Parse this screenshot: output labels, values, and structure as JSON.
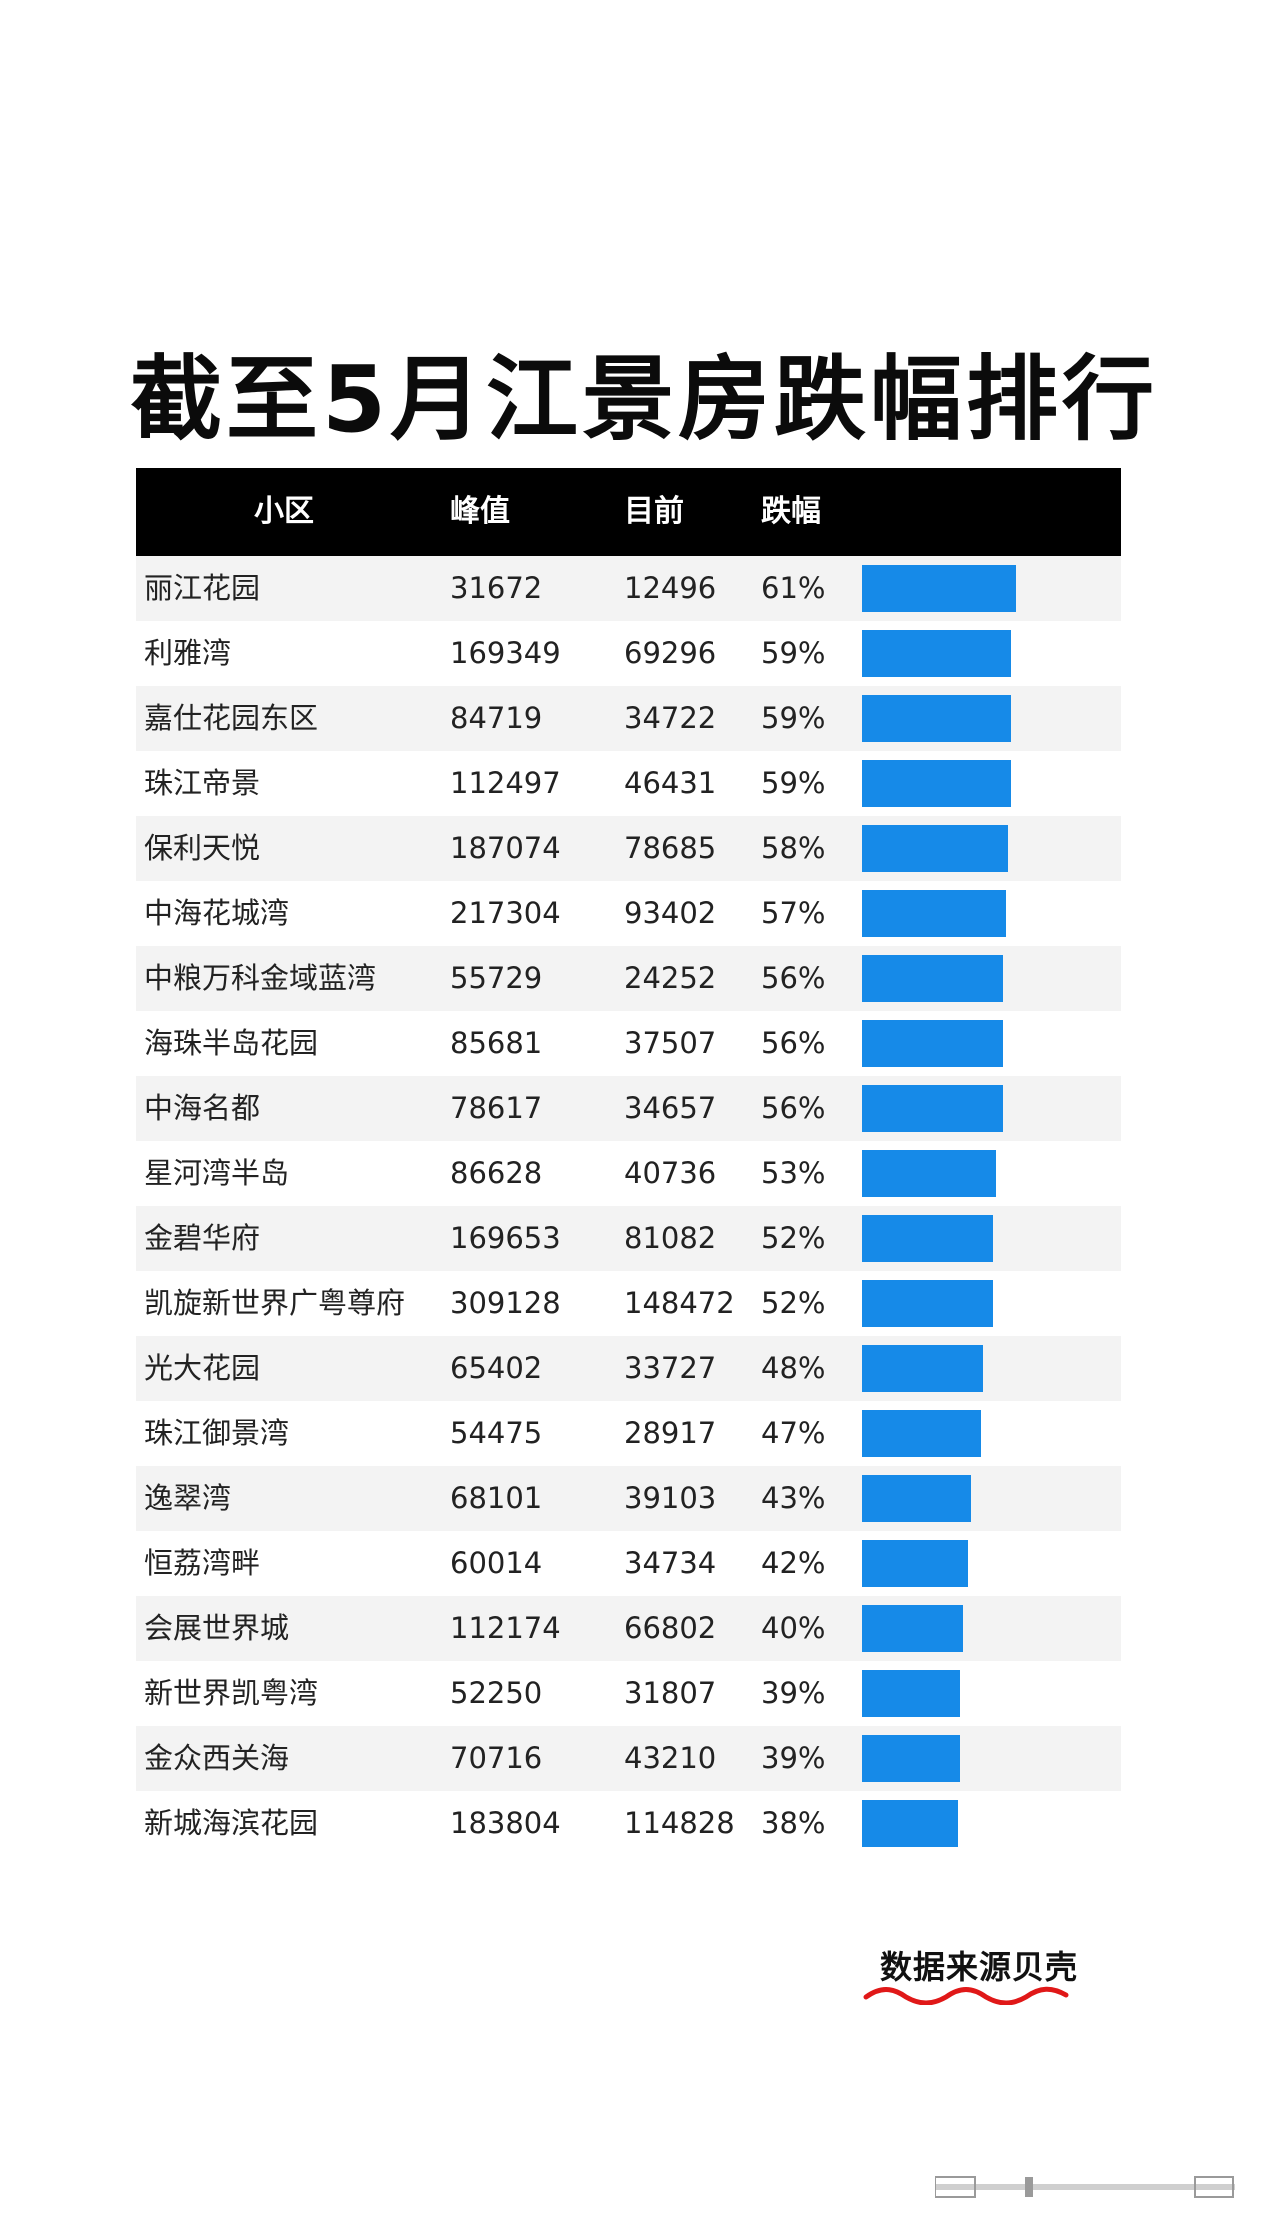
{
  "title": "截至5月江景房跌幅排行",
  "chart_data": {
    "type": "bar",
    "orientation": "horizontal",
    "title": "截至5月江景房跌幅排行",
    "columns": [
      "小区",
      "峰值",
      "目前",
      "跌幅"
    ],
    "rows": [
      {
        "name": "丽江花园",
        "peak": "31672",
        "current": "12496",
        "drop": "61%",
        "value": 61
      },
      {
        "name": "利雅湾",
        "peak": "169349",
        "current": "69296",
        "drop": "59%",
        "value": 59
      },
      {
        "name": "嘉仕花园东区",
        "peak": "84719",
        "current": "34722",
        "drop": "59%",
        "value": 59
      },
      {
        "name": "珠江帝景",
        "peak": "112497",
        "current": "46431",
        "drop": "59%",
        "value": 59
      },
      {
        "name": "保利天悦",
        "peak": "187074",
        "current": "78685",
        "drop": "58%",
        "value": 58
      },
      {
        "name": "中海花城湾",
        "peak": "217304",
        "current": "93402",
        "drop": "57%",
        "value": 57
      },
      {
        "name": "中粮万科金域蓝湾",
        "peak": "55729",
        "current": "24252",
        "drop": "56%",
        "value": 56
      },
      {
        "name": "海珠半岛花园",
        "peak": "85681",
        "current": "37507",
        "drop": "56%",
        "value": 56
      },
      {
        "name": "中海名都",
        "peak": "78617",
        "current": "34657",
        "drop": "56%",
        "value": 56
      },
      {
        "name": "星河湾半岛",
        "peak": "86628",
        "current": "40736",
        "drop": "53%",
        "value": 53
      },
      {
        "name": "金碧华府",
        "peak": "169653",
        "current": "81082",
        "drop": "52%",
        "value": 52
      },
      {
        "name": "凯旋新世界广粤尊府",
        "peak": "309128",
        "current": "148472",
        "drop": "52%",
        "value": 52
      },
      {
        "name": "光大花园",
        "peak": "65402",
        "current": "33727",
        "drop": "48%",
        "value": 48
      },
      {
        "name": "珠江御景湾",
        "peak": "54475",
        "current": "28917",
        "drop": "47%",
        "value": 47
      },
      {
        "name": "逸翠湾",
        "peak": "68101",
        "current": "39103",
        "drop": "43%",
        "value": 43
      },
      {
        "name": "恒荔湾畔",
        "peak": "60014",
        "current": "34734",
        "drop": "42%",
        "value": 42
      },
      {
        "name": "会展世界城",
        "peak": "112174",
        "current": "66802",
        "drop": "40%",
        "value": 40
      },
      {
        "name": "新世界凯粤湾",
        "peak": "52250",
        "current": "31807",
        "drop": "39%",
        "value": 39
      },
      {
        "name": "金众西关海",
        "peak": "70716",
        "current": "43210",
        "drop": "39%",
        "value": 39
      },
      {
        "name": "新城海滨花园",
        "peak": "183804",
        "current": "114828",
        "drop": "38%",
        "value": 38
      }
    ],
    "bar_color": "#168ae8",
    "header_bg": "#000000",
    "stripe_bg": "#f3f3f3"
  },
  "source": "数据来源贝壳",
  "wave_color": "#e01818"
}
